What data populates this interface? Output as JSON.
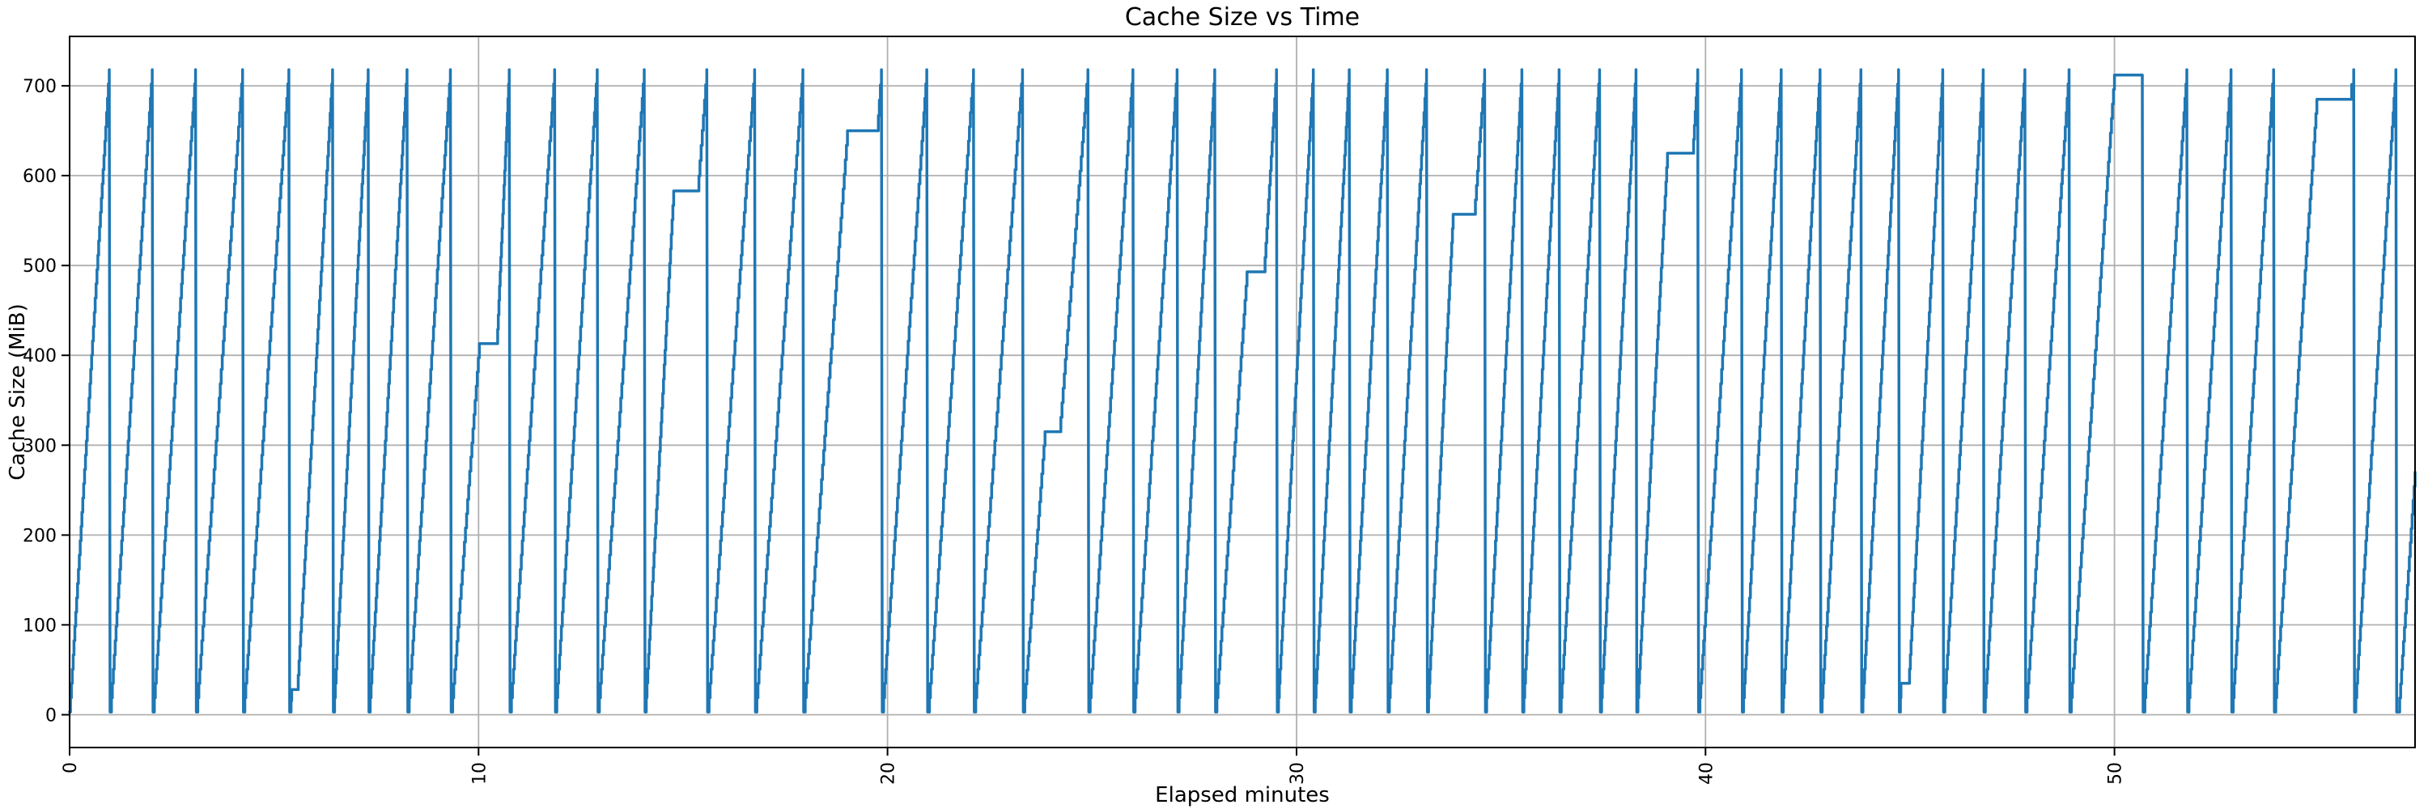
{
  "chart_data": {
    "type": "line",
    "title": "Cache Size vs Time",
    "xlabel": "Elapsed minutes",
    "ylabel": "Cache Size (MiB)",
    "x_ticks": [
      0,
      10,
      20,
      30,
      40,
      50
    ],
    "y_ticks": [
      0,
      100,
      200,
      300,
      400,
      500,
      600,
      700
    ],
    "x_tick_rotation_deg": -90,
    "xlim": [
      0,
      57.35
    ],
    "ylim": [
      -36.5,
      755
    ],
    "grid": true,
    "legend": "none",
    "line_color": "#1f77b4",
    "grid_color": "#b0b0b0",
    "spine_color": "#000000",
    "default_peak_mib": 718,
    "trough_mib": 3,
    "staircase_step_mib": 16,
    "series_name": "cache-size",
    "teeth": [
      {
        "s": 0.0,
        "p": 0.97
      },
      {
        "s": 1.0,
        "p": 2.02
      },
      {
        "s": 2.05,
        "p": 3.08
      },
      {
        "s": 3.11,
        "p": 4.23
      },
      {
        "s": 4.26,
        "p": 5.36
      },
      {
        "s": 5.4,
        "p": 6.43,
        "bottom_step": [
          28,
          5.43,
          5.57
        ]
      },
      {
        "s": 6.46,
        "p": 7.3
      },
      {
        "s": 7.33,
        "p": 8.25
      },
      {
        "s": 8.28,
        "p": 9.31
      },
      {
        "s": 9.34,
        "p": 10.75,
        "plateau": [
          413,
          10.02,
          10.45
        ]
      },
      {
        "s": 10.78,
        "p": 11.86
      },
      {
        "s": 11.89,
        "p": 12.9
      },
      {
        "s": 12.93,
        "p": 14.05
      },
      {
        "s": 14.08,
        "p": 15.58,
        "plateau": [
          583,
          14.77,
          15.36
        ]
      },
      {
        "s": 15.61,
        "p": 16.75
      },
      {
        "s": 16.78,
        "p": 17.93
      },
      {
        "s": 17.96,
        "p": 19.85,
        "plateau": [
          650,
          19.02,
          19.75
        ]
      },
      {
        "s": 19.88,
        "p": 20.96
      },
      {
        "s": 21.0,
        "p": 22.1
      },
      {
        "s": 22.13,
        "p": 23.3
      },
      {
        "s": 23.33,
        "p": 24.9,
        "plateau": [
          315,
          23.85,
          24.21
        ]
      },
      {
        "s": 24.93,
        "p": 26.0
      },
      {
        "s": 26.03,
        "p": 27.08
      },
      {
        "s": 27.11,
        "p": 28.0
      },
      {
        "s": 28.03,
        "p": 29.51,
        "plateau": [
          493,
          28.79,
          29.21
        ]
      },
      {
        "s": 29.54,
        "p": 30.41
      },
      {
        "s": 30.44,
        "p": 31.29
      },
      {
        "s": 31.32,
        "p": 32.22
      },
      {
        "s": 32.25,
        "p": 33.18
      },
      {
        "s": 33.21,
        "p": 34.6,
        "plateau": [
          557,
          33.83,
          34.35
        ]
      },
      {
        "s": 34.63,
        "p": 35.51
      },
      {
        "s": 35.54,
        "p": 36.42
      },
      {
        "s": 36.45,
        "p": 37.41
      },
      {
        "s": 37.44,
        "p": 38.3
      },
      {
        "s": 38.33,
        "p": 39.81,
        "plateau": [
          625,
          39.07,
          39.69
        ]
      },
      {
        "s": 39.84,
        "p": 40.88
      },
      {
        "s": 40.91,
        "p": 41.85
      },
      {
        "s": 41.88,
        "p": 42.8
      },
      {
        "s": 42.83,
        "p": 43.8
      },
      {
        "s": 43.83,
        "p": 44.72
      },
      {
        "s": 44.75,
        "p": 45.8,
        "bottom_step": [
          35,
          44.78,
          44.97
        ]
      },
      {
        "s": 45.83,
        "p": 46.79
      },
      {
        "s": 46.82,
        "p": 47.81
      },
      {
        "s": 47.84,
        "p": 48.89
      },
      {
        "s": 48.92,
        "p": 50.0,
        "peak": 712,
        "top_flat_until": 50.68
      },
      {
        "s": 50.72,
        "p": 51.77
      },
      {
        "s": 51.8,
        "p": 52.85
      },
      {
        "s": 52.88,
        "p": 53.89
      },
      {
        "s": 53.92,
        "p": 55.85,
        "plateau": [
          685,
          54.95,
          55.75
        ]
      },
      {
        "s": 55.88,
        "p": 56.88
      },
      {
        "s": 56.95,
        "partial_end": [
          57.35,
          270
        ]
      }
    ]
  }
}
